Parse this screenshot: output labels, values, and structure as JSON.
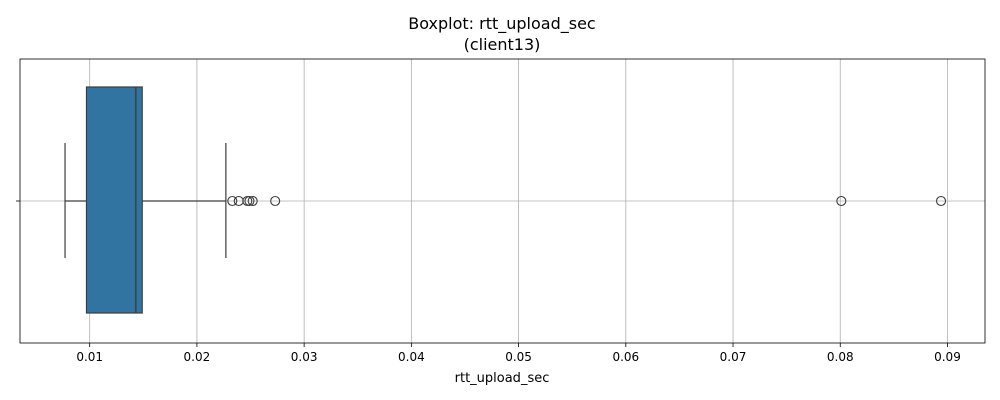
{
  "chart_data": {
    "type": "boxplot",
    "orientation": "horizontal",
    "title": "Boxplot: rtt_upload_sec",
    "subtitle": "(client13)",
    "xlabel": "rtt_upload_sec",
    "ylabel": "",
    "xlim": [
      0.0035,
      0.0935
    ],
    "xticks": [
      0.01,
      0.02,
      0.03,
      0.04,
      0.05,
      0.06,
      0.07,
      0.08,
      0.09
    ],
    "xtick_labels": [
      "0.01",
      "0.02",
      "0.03",
      "0.04",
      "0.05",
      "0.06",
      "0.07",
      "0.08",
      "0.09"
    ],
    "grid": true,
    "box": {
      "whisker_low": 0.0077,
      "q1": 0.0097,
      "median": 0.0143,
      "q3": 0.0149,
      "whisker_high": 0.0227
    },
    "outliers": [
      0.0233,
      0.0239,
      0.0247,
      0.0249,
      0.0252,
      0.0273,
      0.0801,
      0.0894
    ],
    "box_color": "#3274a1",
    "line_color": "#3d3d3d"
  }
}
